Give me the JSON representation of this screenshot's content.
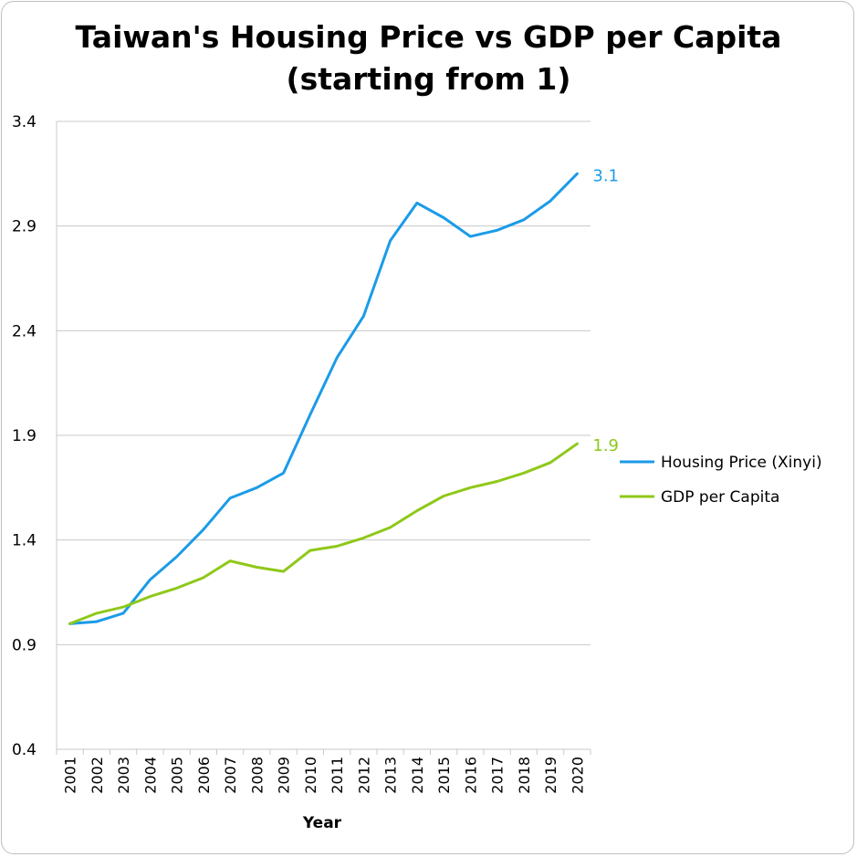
{
  "chart_data": {
    "type": "line",
    "title_line1": "Taiwan's Housing Price vs GDP per Capita",
    "title_line2": "(starting from 1)",
    "xlabel": "Year",
    "ylabel": "",
    "ylim": [
      0.4,
      3.4
    ],
    "yticks": [
      "0.4",
      "0.9",
      "1.4",
      "1.9",
      "2.4",
      "2.9",
      "3.4"
    ],
    "categories": [
      "2001",
      "2002",
      "2003",
      "2004",
      "2005",
      "2006",
      "2007",
      "2008",
      "2009",
      "2010",
      "2011",
      "2012",
      "2013",
      "2014",
      "2015",
      "2016",
      "2017",
      "2018",
      "2019",
      "2020"
    ],
    "series": [
      {
        "name": "Housing Price (Xinyi)",
        "color": "#1b9be8",
        "end_label": "3.1",
        "values": [
          1.0,
          1.01,
          1.05,
          1.21,
          1.32,
          1.45,
          1.6,
          1.65,
          1.72,
          2.0,
          2.27,
          2.47,
          2.83,
          3.01,
          2.94,
          2.85,
          2.88,
          2.93,
          3.02,
          3.15
        ]
      },
      {
        "name": "GDP per Capita",
        "color": "#8fc81a",
        "end_label": "1.9",
        "values": [
          1.0,
          1.05,
          1.08,
          1.13,
          1.17,
          1.22,
          1.3,
          1.27,
          1.25,
          1.35,
          1.37,
          1.41,
          1.46,
          1.54,
          1.61,
          1.65,
          1.68,
          1.72,
          1.77,
          1.86
        ]
      }
    ],
    "grid": "horizontal",
    "legend_position": "right"
  }
}
